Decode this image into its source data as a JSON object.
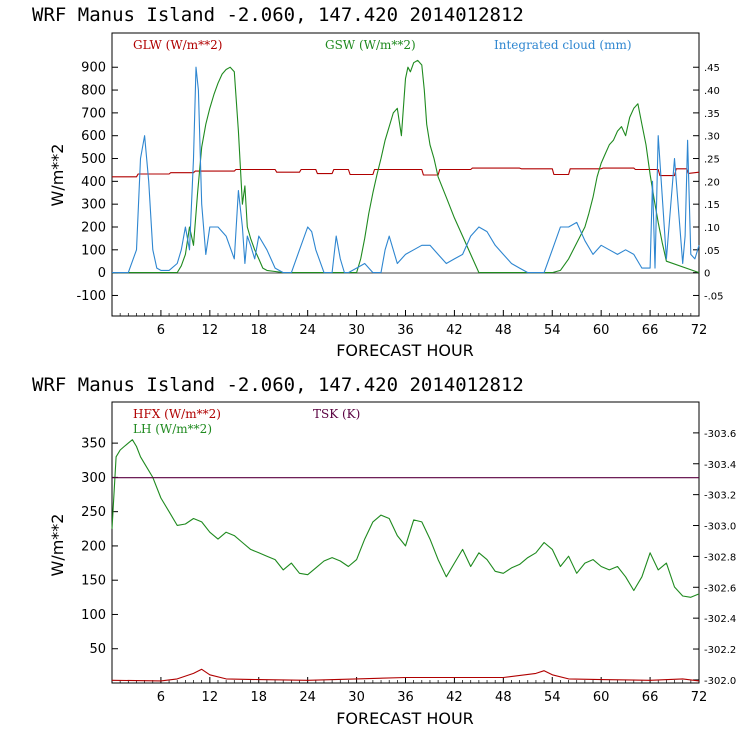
{
  "colors": {
    "glw": "#b00000",
    "gsw": "#1f8a1f",
    "cloud": "#2e86d0",
    "hfx": "#b00000",
    "lh": "#1f8a1f",
    "tsk": "#5a0040",
    "frame": "#000000"
  },
  "charts": [
    {
      "title": "WRF  Manus Island  -2.060, 147.420  2014012812",
      "xlabel": "FORECAST HOUR",
      "ylabel": "W/m**2",
      "xticks": [
        "6",
        "12",
        "18",
        "24",
        "30",
        "36",
        "42",
        "48",
        "54",
        "60",
        "66",
        "72"
      ],
      "yticks": [
        "-100",
        "0",
        "100",
        "200",
        "300",
        "400",
        "500",
        "600",
        "700",
        "800",
        "900"
      ],
      "rticks": [
        "-.05",
        "0",
        ".05",
        ".10",
        ".15",
        ".20",
        ".25",
        ".30",
        ".35",
        ".40",
        ".45"
      ],
      "legend": [
        "GLW (W/m**2)",
        "GSW (W/m**2)",
        "Integrated cloud (mm)"
      ]
    },
    {
      "title": "WRF  Manus Island  -2.060, 147.420  2014012812",
      "xlabel": "FORECAST HOUR",
      "ylabel": "W/m**2",
      "xticks": [
        "6",
        "12",
        "18",
        "24",
        "30",
        "36",
        "42",
        "48",
        "54",
        "60",
        "66",
        "72"
      ],
      "yticks": [
        "50",
        "100",
        "150",
        "200",
        "250",
        "300",
        "350"
      ],
      "rticks": [
        "302.0",
        "302.2",
        "302.4",
        "302.6",
        "302.8",
        "303.0",
        "303.2",
        "303.4",
        "303.6"
      ],
      "legend": [
        "HFX (W/m**2)",
        "LH  (W/m**2)",
        "TSK (K)"
      ]
    }
  ],
  "chart_data": [
    {
      "type": "line",
      "title": "WRF  Manus Island  -2.060, 147.420  2014012812",
      "xlabel": "FORECAST HOUR",
      "ylabel": "W/m**2",
      "xlim": [
        0,
        72
      ],
      "ylim": [
        -190,
        1050
      ],
      "y2lim": [
        -0.095,
        0.525
      ],
      "series": [
        {
          "name": "GLW (W/m**2)",
          "axis": "left",
          "x": [
            0,
            3,
            3.2,
            7,
            7.2,
            10,
            10.2,
            15,
            15.2,
            20,
            20.2,
            23,
            23.2,
            25,
            25.2,
            27,
            27.2,
            29,
            29.2,
            32,
            32.2,
            38,
            38.2,
            40,
            40.2,
            44,
            44.2,
            50,
            50.2,
            54,
            54.2,
            56,
            56.2,
            60,
            60.2,
            64,
            64.2,
            67,
            67.2,
            69,
            69.2,
            70.5,
            70.7,
            72
          ],
          "y": [
            420,
            420,
            432,
            432,
            438,
            438,
            445,
            445,
            452,
            452,
            440,
            440,
            452,
            452,
            434,
            434,
            452,
            452,
            430,
            430,
            452,
            452,
            428,
            428,
            452,
            452,
            458,
            458,
            455,
            455,
            430,
            430,
            455,
            455,
            458,
            458,
            452,
            452,
            425,
            425,
            455,
            455,
            435,
            440
          ]
        },
        {
          "name": "GSW (W/m**2)",
          "axis": "left",
          "x": [
            0,
            8,
            8.5,
            9,
            9.5,
            10,
            10.5,
            11,
            11.5,
            12,
            12.5,
            13,
            13.5,
            14,
            14.5,
            15,
            15.5,
            16,
            16.3,
            16.6,
            17,
            17.5,
            18,
            18.5,
            19,
            20,
            21,
            22,
            30,
            30.5,
            31,
            31.5,
            32,
            32.5,
            33,
            33.5,
            34,
            34.5,
            35,
            35.5,
            36,
            36.3,
            36.6,
            37,
            37.5,
            38,
            38.3,
            38.6,
            39,
            39.5,
            40,
            41,
            42,
            43,
            44,
            45,
            54,
            55,
            56,
            57,
            58,
            58.5,
            59,
            59.5,
            60,
            60.5,
            61,
            61.5,
            62,
            62.5,
            63,
            63.5,
            64,
            64.5,
            65,
            65.5,
            66,
            66.5,
            67,
            67.5,
            68,
            72
          ],
          "y": [
            0,
            0,
            30,
            80,
            200,
            120,
            350,
            550,
            650,
            720,
            780,
            830,
            870,
            890,
            900,
            880,
            620,
            300,
            380,
            200,
            150,
            100,
            60,
            20,
            10,
            5,
            0,
            0,
            0,
            60,
            150,
            260,
            350,
            430,
            500,
            580,
            640,
            700,
            720,
            600,
            850,
            900,
            880,
            920,
            930,
            910,
            800,
            650,
            560,
            500,
            420,
            330,
            240,
            160,
            80,
            0,
            0,
            10,
            60,
            130,
            200,
            260,
            330,
            420,
            480,
            520,
            560,
            580,
            620,
            640,
            600,
            680,
            720,
            740,
            650,
            560,
            430,
            320,
            220,
            130,
            50,
            0
          ]
        },
        {
          "name": "Integrated cloud (mm)",
          "axis": "right",
          "x": [
            0,
            1,
            2,
            3,
            3.5,
            4,
            4.5,
            5,
            5.5,
            6,
            7,
            8,
            8.5,
            9,
            9.5,
            10,
            10.3,
            10.6,
            11,
            11.5,
            12,
            13,
            14,
            15,
            15.5,
            16,
            16.3,
            16.6,
            17,
            17.5,
            18,
            19,
            20,
            21,
            22,
            23,
            24,
            24.5,
            25,
            26,
            27,
            27.5,
            28,
            28.5,
            29,
            30,
            31,
            32,
            33,
            33.5,
            34,
            35,
            36,
            37,
            38,
            39,
            40,
            41,
            42,
            43,
            44,
            45,
            46,
            47,
            48,
            49,
            50,
            51,
            52,
            53,
            54,
            55,
            56,
            57,
            58,
            59,
            60,
            61,
            62,
            63,
            64,
            65,
            66,
            66.3,
            66.6,
            67,
            68,
            69,
            70,
            70.3,
            70.6,
            71,
            71.5,
            72
          ],
          "y": [
            0,
            0,
            0,
            0.05,
            0.25,
            0.3,
            0.2,
            0.05,
            0.01,
            0.005,
            0.005,
            0.02,
            0.05,
            0.1,
            0.05,
            0.25,
            0.45,
            0.4,
            0.15,
            0.04,
            0.1,
            0.1,
            0.08,
            0.03,
            0.18,
            0.1,
            0.02,
            0.08,
            0.06,
            0.03,
            0.08,
            0.05,
            0.01,
            0,
            0,
            0.05,
            0.1,
            0.09,
            0.05,
            0,
            0,
            0.08,
            0.03,
            0,
            0,
            0.01,
            0.02,
            0,
            0,
            0.05,
            0.08,
            0.02,
            0.04,
            0.05,
            0.06,
            0.06,
            0.04,
            0.02,
            0.03,
            0.04,
            0.08,
            0.1,
            0.09,
            0.06,
            0.04,
            0.02,
            0.01,
            0,
            0,
            0,
            0.05,
            0.1,
            0.1,
            0.11,
            0.07,
            0.04,
            0.06,
            0.05,
            0.04,
            0.05,
            0.04,
            0.01,
            0.01,
            0.2,
            0.01,
            0.3,
            0.03,
            0.25,
            0.02,
            0.08,
            0.29,
            0.04,
            0.03,
            0.06
          ]
        }
      ]
    },
    {
      "type": "line",
      "title": "WRF  Manus Island  -2.060, 147.420  2014012812",
      "xlabel": "FORECAST HOUR",
      "ylabel": "W/m**2",
      "xlim": [
        0,
        72
      ],
      "ylim": [
        0,
        410
      ],
      "y2lim": [
        301.98,
        303.8
      ],
      "series": [
        {
          "name": "HFX (W/m**2)",
          "axis": "left",
          "x": [
            0,
            6,
            8,
            10,
            11,
            12,
            14,
            18,
            24,
            30,
            36,
            42,
            48,
            52,
            53,
            54,
            56,
            60,
            66,
            70,
            72
          ],
          "y": [
            4,
            3,
            6,
            14,
            20,
            12,
            6,
            5,
            4,
            6,
            8,
            8,
            8,
            14,
            18,
            12,
            6,
            5,
            4,
            6,
            3
          ]
        },
        {
          "name": "LH  (W/m**2)",
          "axis": "left",
          "x": [
            0,
            0.5,
            1,
            1.5,
            2,
            2.5,
            3,
            3.5,
            4,
            5,
            6,
            7,
            8,
            9,
            10,
            11,
            12,
            13,
            14,
            15,
            16,
            17,
            18,
            19,
            20,
            21,
            22,
            23,
            24,
            25,
            26,
            27,
            28,
            29,
            30,
            31,
            32,
            33,
            34,
            35,
            36,
            37,
            38,
            39,
            40,
            41,
            42,
            43,
            44,
            45,
            46,
            47,
            48,
            49,
            50,
            51,
            52,
            53,
            54,
            55,
            56,
            57,
            58,
            59,
            60,
            61,
            62,
            63,
            64,
            65,
            66,
            67,
            68,
            69,
            70,
            71,
            72
          ],
          "y": [
            225,
            330,
            340,
            345,
            350,
            355,
            345,
            330,
            320,
            300,
            270,
            250,
            230,
            232,
            240,
            235,
            220,
            210,
            220,
            215,
            205,
            195,
            190,
            185,
            180,
            165,
            175,
            160,
            158,
            168,
            178,
            183,
            178,
            170,
            180,
            210,
            235,
            245,
            240,
            215,
            200,
            238,
            235,
            210,
            180,
            155,
            175,
            195,
            170,
            190,
            180,
            163,
            160,
            168,
            173,
            183,
            190,
            205,
            195,
            170,
            185,
            160,
            175,
            180,
            170,
            165,
            170,
            155,
            135,
            155,
            190,
            165,
            175,
            140,
            127,
            125,
            130
          ]
        },
        {
          "name": "TSK (K)",
          "axis": "right",
          "x": [
            0,
            72
          ],
          "y": [
            303.31,
            303.31
          ]
        }
      ]
    }
  ]
}
